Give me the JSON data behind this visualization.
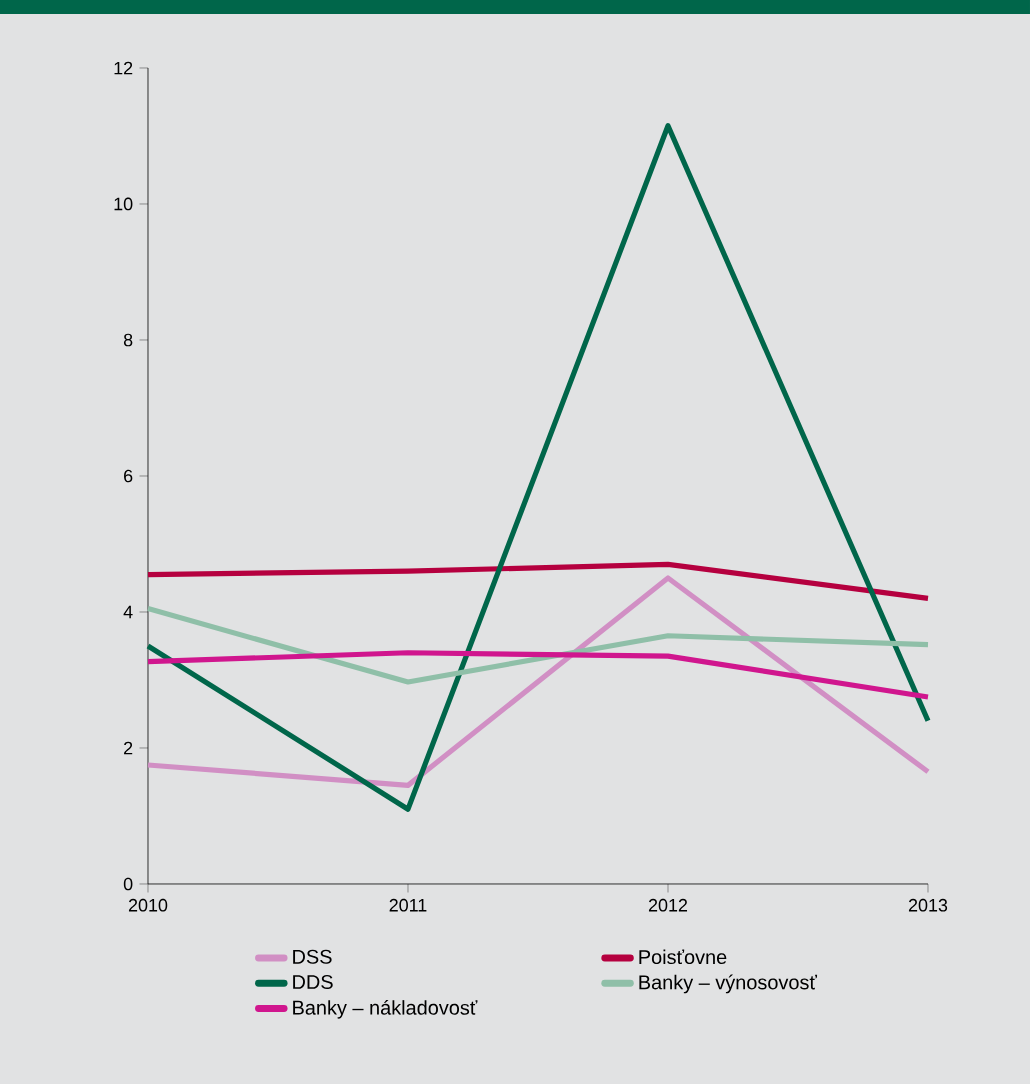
{
  "chart_data": {
    "type": "line",
    "x": [
      2010,
      2011,
      2012,
      2013
    ],
    "xlim": [
      2010,
      2013
    ],
    "xticks": [
      2010,
      2011,
      2012,
      2013
    ],
    "ylim": [
      0,
      12
    ],
    "yticks": [
      0,
      2,
      4,
      6,
      8,
      10,
      12
    ],
    "grid": false,
    "legend": "bottom",
    "line_style": "solid",
    "marker": "none",
    "series": [
      {
        "name": "DSS",
        "color": "#d18fc4",
        "values": [
          1.75,
          1.45,
          4.5,
          1.65
        ]
      },
      {
        "name": "Poisťovne",
        "color": "#b5003f",
        "values": [
          4.55,
          4.6,
          4.7,
          4.2
        ]
      },
      {
        "name": "DDS",
        "color": "#00664a",
        "values": [
          3.5,
          1.1,
          11.15,
          2.4
        ]
      },
      {
        "name": "Banky – výnosovosť",
        "color": "#8fbfa8",
        "values": [
          4.05,
          2.97,
          3.65,
          3.52
        ]
      },
      {
        "name": "Banky – nákladovosť",
        "color": "#d0168e",
        "values": [
          3.27,
          3.4,
          3.35,
          2.75
        ]
      }
    ]
  }
}
